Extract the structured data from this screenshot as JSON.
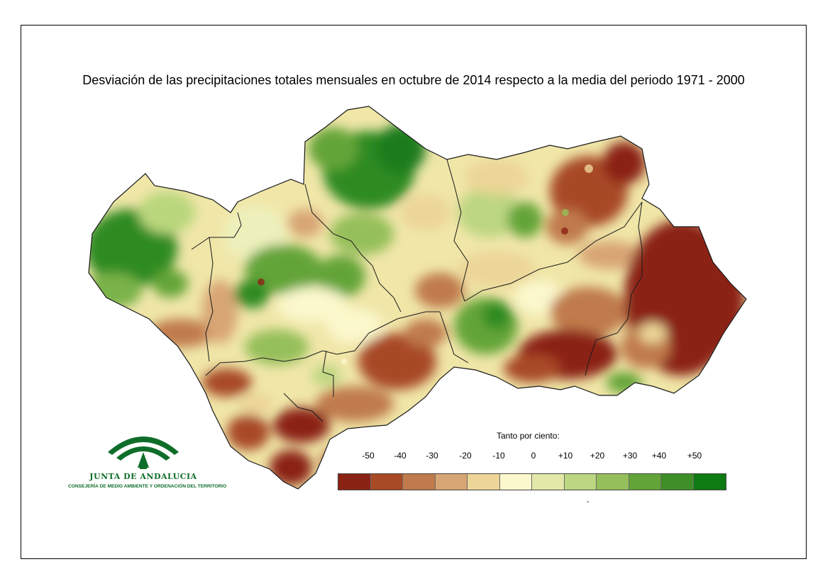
{
  "title": "Desviación de las precipitaciones totales mensuales en octubre de 2014 respecto a la media del periodo 1971 - 2000",
  "legend": {
    "caption": "Tanto por ciento:",
    "labels": [
      "-50",
      "-40",
      "-30",
      "-20",
      "-10",
      "0",
      "+10",
      "+20",
      "+30",
      "+40",
      "+50"
    ],
    "colors": [
      "#8b2315",
      "#a84a26",
      "#c07a4b",
      "#d8a574",
      "#ecd597",
      "#fbf8cc",
      "#e3e8a8",
      "#bcd681",
      "#95bf5a",
      "#63a438",
      "#3f8f28",
      "#0e7a12"
    ]
  },
  "logo": {
    "name": "JUNTA DE ANDALUCIA",
    "subtitle": "CONSEJERÍA DE MEDIO AMBIENTE Y ORDENACIÓN DEL TERRITORIO"
  },
  "footer_mark": "-"
}
